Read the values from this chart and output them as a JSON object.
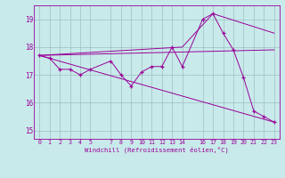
{
  "xlabel": "Windchill (Refroidissement éolien,°C)",
  "background_color": "#c8eaea",
  "line_color": "#990099",
  "grid_color": "#9fbfbf",
  "xlim": [
    -0.5,
    23.5
  ],
  "ylim": [
    14.7,
    19.5
  ],
  "xticks": [
    0,
    1,
    2,
    3,
    4,
    5,
    7,
    8,
    9,
    10,
    11,
    12,
    13,
    14,
    16,
    17,
    18,
    19,
    20,
    21,
    22,
    23
  ],
  "yticks": [
    15,
    16,
    17,
    18,
    19
  ],
  "series_main": {
    "x": [
      0,
      1,
      2,
      3,
      4,
      5,
      7,
      8,
      9,
      10,
      11,
      12,
      13,
      14,
      16,
      17,
      18,
      19,
      20,
      21,
      22,
      23
    ],
    "y": [
      17.7,
      17.6,
      17.2,
      17.2,
      17.0,
      17.2,
      17.5,
      17.0,
      16.6,
      17.1,
      17.3,
      17.3,
      18.0,
      17.3,
      19.0,
      19.2,
      18.5,
      17.9,
      16.9,
      15.7,
      15.5,
      15.3
    ]
  },
  "trend_lines": [
    {
      "x": [
        0,
        23
      ],
      "y": [
        17.7,
        17.9
      ]
    },
    {
      "x": [
        0,
        23
      ],
      "y": [
        17.7,
        15.3
      ]
    },
    {
      "x": [
        0,
        14,
        17,
        23
      ],
      "y": [
        17.7,
        18.0,
        19.2,
        18.5
      ]
    }
  ]
}
